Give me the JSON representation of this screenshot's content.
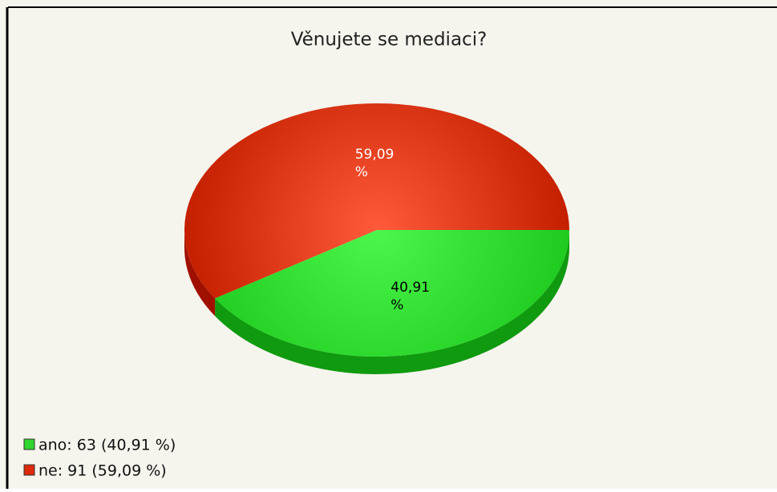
{
  "chart_data": {
    "type": "pie",
    "title": "Věnujete se mediaci?",
    "values": [
      40.91,
      59.09
    ],
    "value_labels": [
      "40,91 %",
      "59,09 %"
    ],
    "colors": [
      "#2ed62e",
      "#dd2a0c"
    ],
    "label_colors": [
      "#000000",
      "#ffffff"
    ],
    "legend_labels": [
      "ano: 63 (40,91 %)",
      "ne: 91 (59,09 %)"
    ]
  }
}
